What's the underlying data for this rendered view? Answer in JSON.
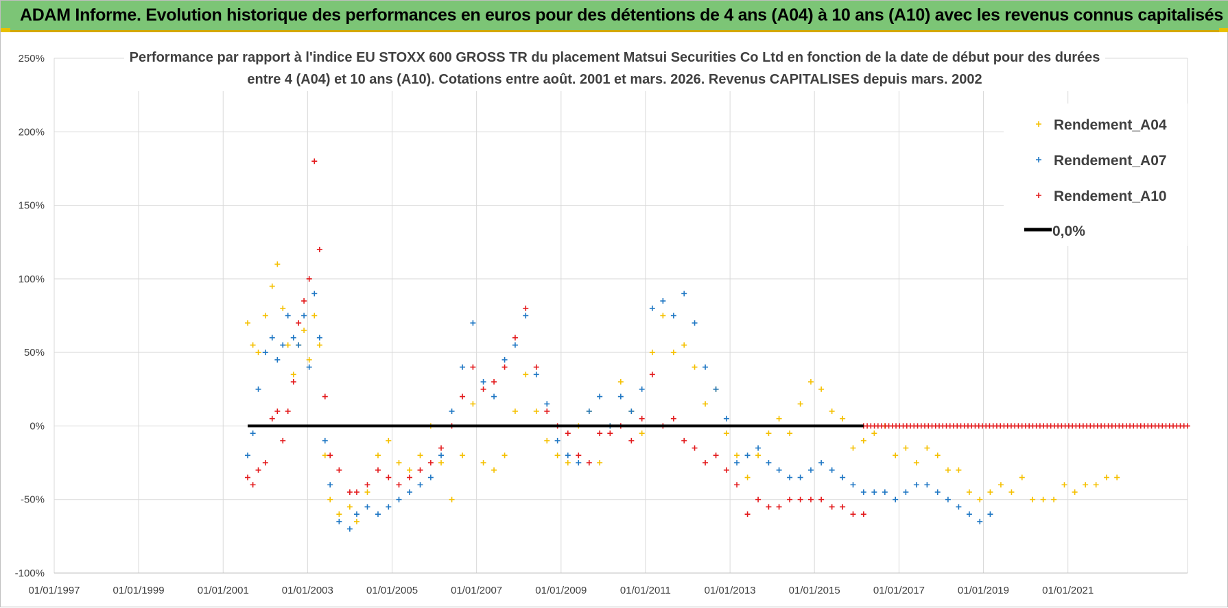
{
  "header": {
    "title": "ADAM Informe. Evolution historique des performances en euros pour des détentions de 4 ans (A04) à 10 ans (A10) avec les revenus connus capitalisés"
  },
  "chart_data": {
    "type": "scatter",
    "title_line1": "Performance par rapport à l'indice EU STOXX 600 GROSS TR  du placement Matsui Securities Co Ltd en fonction de la date de début pour des durées",
    "title_line2": "entre 4 (A04) et 10 ans (A10). Cotations entre août. 2001 et mars. 2026. Revenus CAPITALISES depuis mars. 2002",
    "xlabel": "",
    "ylabel": "",
    "x_range": [
      "1997-01-01",
      "2023-11-01"
    ],
    "y_range": [
      -100,
      250
    ],
    "y_ticks": [
      "250%",
      "200%",
      "150%",
      "100%",
      "50%",
      "0%",
      "-50%",
      "-100%"
    ],
    "x_ticks": [
      "01/01/1997",
      "01/01/1999",
      "01/01/2001",
      "01/01/2003",
      "01/01/2005",
      "01/01/2007",
      "01/01/2009",
      "01/01/2011",
      "01/01/2013",
      "01/01/2015",
      "01/01/2017",
      "01/01/2019",
      "01/01/2021"
    ],
    "grid": true,
    "legend_position": "top-right",
    "series": [
      {
        "name": "Rendement_A04",
        "color": "#f5c000",
        "marker": "plus",
        "points": [
          [
            "2001-08-01",
            70
          ],
          [
            "2001-09-15",
            55
          ],
          [
            "2001-11-01",
            50
          ],
          [
            "2002-01-01",
            75
          ],
          [
            "2002-03-01",
            95
          ],
          [
            "2002-04-15",
            110
          ],
          [
            "2002-06-01",
            80
          ],
          [
            "2002-07-15",
            55
          ],
          [
            "2002-09-01",
            35
          ],
          [
            "2002-10-15",
            55
          ],
          [
            "2002-12-01",
            65
          ],
          [
            "2003-01-15",
            45
          ],
          [
            "2003-03-01",
            75
          ],
          [
            "2003-04-15",
            55
          ],
          [
            "2003-06-01",
            -20
          ],
          [
            "2003-07-15",
            -50
          ],
          [
            "2003-10-01",
            -60
          ],
          [
            "2004-01-01",
            -55
          ],
          [
            "2004-03-01",
            -65
          ],
          [
            "2004-06-01",
            -45
          ],
          [
            "2004-09-01",
            -20
          ],
          [
            "2004-12-01",
            -10
          ],
          [
            "2005-03-01",
            -25
          ],
          [
            "2005-06-01",
            -30
          ],
          [
            "2005-09-01",
            -20
          ],
          [
            "2005-12-01",
            0
          ],
          [
            "2006-03-01",
            -25
          ],
          [
            "2006-06-01",
            -50
          ],
          [
            "2006-09-01",
            -20
          ],
          [
            "2006-12-01",
            15
          ],
          [
            "2007-03-01",
            -25
          ],
          [
            "2007-06-01",
            -30
          ],
          [
            "2007-09-01",
            -20
          ],
          [
            "2007-12-01",
            10
          ],
          [
            "2008-03-01",
            35
          ],
          [
            "2008-06-01",
            10
          ],
          [
            "2008-09-01",
            -10
          ],
          [
            "2008-12-01",
            -20
          ],
          [
            "2009-03-01",
            -25
          ],
          [
            "2009-06-01",
            0
          ],
          [
            "2009-09-01",
            10
          ],
          [
            "2009-12-01",
            -25
          ],
          [
            "2010-03-01",
            0
          ],
          [
            "2010-06-01",
            30
          ],
          [
            "2010-09-01",
            10
          ],
          [
            "2010-12-01",
            -5
          ],
          [
            "2011-03-01",
            50
          ],
          [
            "2011-06-01",
            75
          ],
          [
            "2011-09-01",
            50
          ],
          [
            "2011-12-01",
            55
          ],
          [
            "2012-03-01",
            40
          ],
          [
            "2012-06-01",
            15
          ],
          [
            "2012-09-01",
            25
          ],
          [
            "2012-12-01",
            -5
          ],
          [
            "2013-03-01",
            -20
          ],
          [
            "2013-06-01",
            -35
          ],
          [
            "2013-09-01",
            -20
          ],
          [
            "2013-12-01",
            -5
          ],
          [
            "2014-03-01",
            5
          ],
          [
            "2014-06-01",
            -5
          ],
          [
            "2014-09-01",
            15
          ],
          [
            "2014-12-01",
            30
          ],
          [
            "2015-03-01",
            25
          ],
          [
            "2015-06-01",
            10
          ],
          [
            "2015-09-01",
            5
          ],
          [
            "2015-12-01",
            -15
          ],
          [
            "2016-03-01",
            -10
          ],
          [
            "2016-06-01",
            -5
          ],
          [
            "2016-09-01",
            0
          ],
          [
            "2016-12-01",
            -20
          ],
          [
            "2017-03-01",
            -15
          ],
          [
            "2017-06-01",
            -25
          ],
          [
            "2017-09-01",
            -15
          ],
          [
            "2017-12-01",
            -20
          ],
          [
            "2018-03-01",
            -30
          ],
          [
            "2018-06-01",
            -30
          ],
          [
            "2018-09-01",
            -45
          ],
          [
            "2018-12-01",
            -50
          ],
          [
            "2019-03-01",
            -45
          ],
          [
            "2019-06-01",
            -40
          ],
          [
            "2019-09-01",
            -45
          ],
          [
            "2019-12-01",
            -35
          ],
          [
            "2020-03-01",
            -50
          ],
          [
            "2020-06-01",
            -50
          ],
          [
            "2020-09-01",
            -50
          ],
          [
            "2020-12-01",
            -40
          ],
          [
            "2021-03-01",
            -45
          ],
          [
            "2021-06-01",
            -40
          ],
          [
            "2021-09-01",
            -40
          ],
          [
            "2021-12-01",
            -35
          ],
          [
            "2022-03-01",
            -35
          ]
        ]
      },
      {
        "name": "Rendement_A07",
        "color": "#1f77c4",
        "marker": "plus",
        "points": [
          [
            "2001-08-01",
            -20
          ],
          [
            "2001-09-15",
            -5
          ],
          [
            "2001-11-01",
            25
          ],
          [
            "2002-01-01",
            50
          ],
          [
            "2002-03-01",
            60
          ],
          [
            "2002-04-15",
            45
          ],
          [
            "2002-06-01",
            55
          ],
          [
            "2002-07-15",
            75
          ],
          [
            "2002-09-01",
            60
          ],
          [
            "2002-10-15",
            55
          ],
          [
            "2002-12-01",
            75
          ],
          [
            "2003-01-15",
            40
          ],
          [
            "2003-03-01",
            90
          ],
          [
            "2003-04-15",
            60
          ],
          [
            "2003-06-01",
            -10
          ],
          [
            "2003-07-15",
            -40
          ],
          [
            "2003-10-01",
            -65
          ],
          [
            "2004-01-01",
            -70
          ],
          [
            "2004-03-01",
            -60
          ],
          [
            "2004-06-01",
            -55
          ],
          [
            "2004-09-01",
            -60
          ],
          [
            "2004-12-01",
            -55
          ],
          [
            "2005-03-01",
            -50
          ],
          [
            "2005-06-01",
            -45
          ],
          [
            "2005-09-01",
            -40
          ],
          [
            "2005-12-01",
            -35
          ],
          [
            "2006-03-01",
            -20
          ],
          [
            "2006-06-01",
            10
          ],
          [
            "2006-09-01",
            40
          ],
          [
            "2006-12-01",
            70
          ],
          [
            "2007-03-01",
            30
          ],
          [
            "2007-06-01",
            20
          ],
          [
            "2007-09-01",
            45
          ],
          [
            "2007-12-01",
            55
          ],
          [
            "2008-03-01",
            75
          ],
          [
            "2008-06-01",
            35
          ],
          [
            "2008-09-01",
            15
          ],
          [
            "2008-12-01",
            -10
          ],
          [
            "2009-03-01",
            -20
          ],
          [
            "2009-06-01",
            -25
          ],
          [
            "2009-09-01",
            10
          ],
          [
            "2009-12-01",
            20
          ],
          [
            "2010-03-01",
            0
          ],
          [
            "2010-06-01",
            20
          ],
          [
            "2010-09-01",
            10
          ],
          [
            "2010-12-01",
            25
          ],
          [
            "2011-03-01",
            80
          ],
          [
            "2011-06-01",
            85
          ],
          [
            "2011-09-01",
            75
          ],
          [
            "2011-12-01",
            90
          ],
          [
            "2012-03-01",
            70
          ],
          [
            "2012-06-01",
            40
          ],
          [
            "2012-09-01",
            25
          ],
          [
            "2012-12-01",
            5
          ],
          [
            "2013-03-01",
            -25
          ],
          [
            "2013-06-01",
            -20
          ],
          [
            "2013-09-01",
            -15
          ],
          [
            "2013-12-01",
            -25
          ],
          [
            "2014-03-01",
            -30
          ],
          [
            "2014-06-01",
            -35
          ],
          [
            "2014-09-01",
            -35
          ],
          [
            "2014-12-01",
            -30
          ],
          [
            "2015-03-01",
            -25
          ],
          [
            "2015-06-01",
            -30
          ],
          [
            "2015-09-01",
            -35
          ],
          [
            "2015-12-01",
            -40
          ],
          [
            "2016-03-01",
            -45
          ],
          [
            "2016-06-01",
            -45
          ],
          [
            "2016-09-01",
            -45
          ],
          [
            "2016-12-01",
            -50
          ],
          [
            "2017-03-01",
            -45
          ],
          [
            "2017-06-01",
            -40
          ],
          [
            "2017-09-01",
            -40
          ],
          [
            "2017-12-01",
            -45
          ],
          [
            "2018-03-01",
            -50
          ],
          [
            "2018-06-01",
            -55
          ],
          [
            "2018-09-01",
            -60
          ],
          [
            "2018-12-01",
            -65
          ],
          [
            "2019-03-01",
            -60
          ]
        ]
      },
      {
        "name": "Rendement_A10",
        "color": "#e31a1c",
        "marker": "plus",
        "points": [
          [
            "2001-08-01",
            -35
          ],
          [
            "2001-09-15",
            -40
          ],
          [
            "2001-11-01",
            -30
          ],
          [
            "2002-01-01",
            -25
          ],
          [
            "2002-03-01",
            5
          ],
          [
            "2002-04-15",
            10
          ],
          [
            "2002-06-01",
            -10
          ],
          [
            "2002-07-15",
            10
          ],
          [
            "2002-09-01",
            30
          ],
          [
            "2002-10-15",
            70
          ],
          [
            "2002-12-01",
            85
          ],
          [
            "2003-01-15",
            100
          ],
          [
            "2003-03-01",
            180
          ],
          [
            "2003-04-15",
            120
          ],
          [
            "2003-06-01",
            20
          ],
          [
            "2003-07-15",
            -20
          ],
          [
            "2003-10-01",
            -30
          ],
          [
            "2004-01-01",
            -45
          ],
          [
            "2004-03-01",
            -45
          ],
          [
            "2004-06-01",
            -40
          ],
          [
            "2004-09-01",
            -30
          ],
          [
            "2004-12-01",
            -35
          ],
          [
            "2005-03-01",
            -40
          ],
          [
            "2005-06-01",
            -35
          ],
          [
            "2005-09-01",
            -30
          ],
          [
            "2005-12-01",
            -25
          ],
          [
            "2006-03-01",
            -15
          ],
          [
            "2006-06-01",
            0
          ],
          [
            "2006-09-01",
            20
          ],
          [
            "2006-12-01",
            40
          ],
          [
            "2007-03-01",
            25
          ],
          [
            "2007-06-01",
            30
          ],
          [
            "2007-09-01",
            40
          ],
          [
            "2007-12-01",
            60
          ],
          [
            "2008-03-01",
            80
          ],
          [
            "2008-06-01",
            40
          ],
          [
            "2008-09-01",
            10
          ],
          [
            "2008-12-01",
            0
          ],
          [
            "2009-03-01",
            -5
          ],
          [
            "2009-06-01",
            -20
          ],
          [
            "2009-09-01",
            -25
          ],
          [
            "2009-12-01",
            -5
          ],
          [
            "2010-03-01",
            -5
          ],
          [
            "2010-06-01",
            0
          ],
          [
            "2010-09-01",
            -10
          ],
          [
            "2010-12-01",
            5
          ],
          [
            "2011-03-01",
            35
          ],
          [
            "2011-06-01",
            0
          ],
          [
            "2011-09-01",
            5
          ],
          [
            "2011-12-01",
            -10
          ],
          [
            "2012-03-01",
            -15
          ],
          [
            "2012-06-01",
            -25
          ],
          [
            "2012-09-01",
            -20
          ],
          [
            "2012-12-01",
            -30
          ],
          [
            "2013-03-01",
            -40
          ],
          [
            "2013-06-01",
            -60
          ],
          [
            "2013-09-01",
            -50
          ],
          [
            "2013-12-01",
            -55
          ],
          [
            "2014-03-01",
            -55
          ],
          [
            "2014-06-01",
            -50
          ],
          [
            "2014-09-01",
            -50
          ],
          [
            "2014-12-01",
            -50
          ],
          [
            "2015-03-01",
            -50
          ],
          [
            "2015-06-01",
            -55
          ],
          [
            "2015-09-01",
            -55
          ],
          [
            "2015-12-01",
            -60
          ],
          [
            "2016-03-01",
            -60
          ]
        ]
      }
    ],
    "zero_line": {
      "name": "0,0%",
      "value": 0,
      "color": "#000000",
      "from": "2001-08-01",
      "to": "2016-03-01"
    },
    "a10_zero_segment": {
      "from": "2016-03-01",
      "to": "2023-11-01",
      "value": 0
    }
  }
}
